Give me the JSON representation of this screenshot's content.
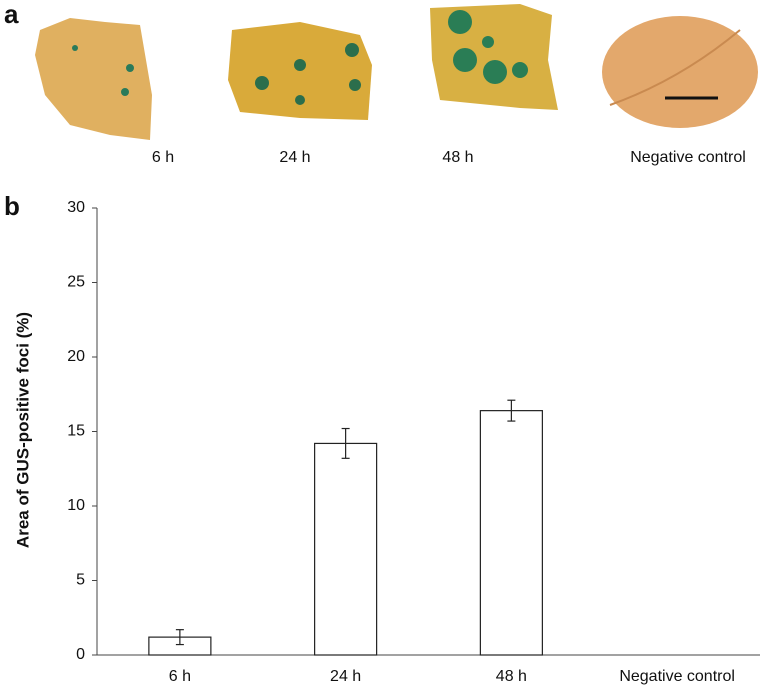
{
  "panel_labels": [
    "a",
    "b"
  ],
  "images": {
    "captions": [
      "6 h",
      "24 h",
      "48 h",
      "Negative control"
    ]
  },
  "chart_data": {
    "type": "bar",
    "y_label": "Area of GUS-positive foci  (%)",
    "categories": [
      "6 h",
      "24 h",
      "48 h",
      "Negative control"
    ],
    "values": [
      1.2,
      14.2,
      16.4,
      0
    ],
    "errors": [
      0.5,
      1.0,
      0.7,
      null
    ],
    "color": "#ffffff",
    "ylim": [
      0,
      30
    ],
    "yticks": [
      0,
      5,
      10,
      15,
      20,
      25,
      30
    ],
    "grid": false
  }
}
